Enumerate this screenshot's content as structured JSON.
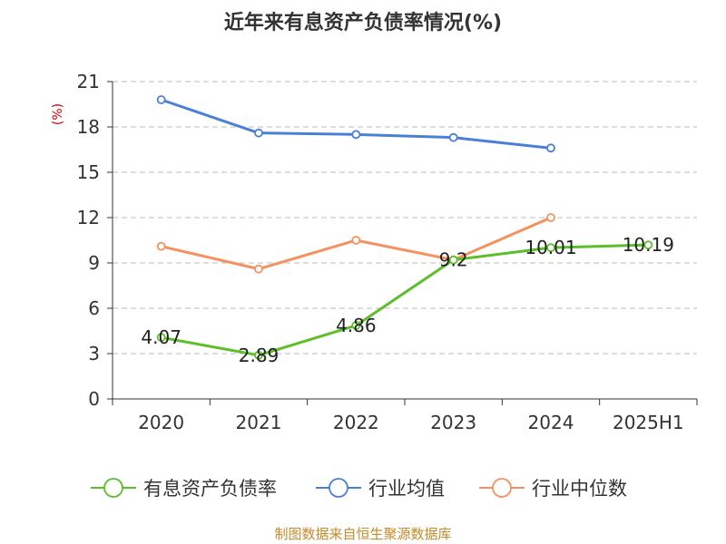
{
  "chart_data": {
    "type": "line",
    "title": "近年来有息资产负债率情况(%)",
    "ylabel": "(%)",
    "xlabel": "",
    "categories": [
      "2020",
      "2021",
      "2022",
      "2023",
      "2024",
      "2025H1"
    ],
    "ylim": [
      0,
      21
    ],
    "yticks": [
      0,
      3,
      6,
      9,
      12,
      15,
      18,
      21
    ],
    "grid": true,
    "legend_position": "bottom",
    "series": [
      {
        "name": "有息资产负债率",
        "color": "#5cbf2a",
        "values": [
          4.07,
          2.89,
          4.86,
          9.2,
          10.01,
          10.19
        ],
        "labels": [
          "4.07",
          "2.89",
          "4.86",
          "9.2",
          "10.01",
          "10.19"
        ]
      },
      {
        "name": "行业均值",
        "color": "#4a7fd8",
        "values": [
          19.8,
          17.6,
          17.5,
          17.3,
          16.6,
          null
        ]
      },
      {
        "name": "行业中位数",
        "color": "#f4915e",
        "values": [
          10.1,
          8.6,
          10.5,
          9.2,
          12.0,
          null
        ]
      }
    ],
    "source": "制图数据来自恒生聚源数据库"
  }
}
